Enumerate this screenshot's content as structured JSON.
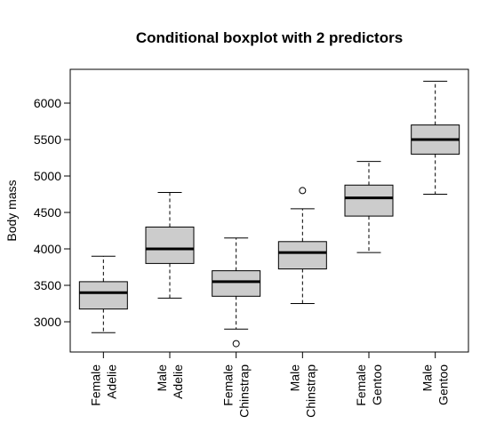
{
  "chart_data": {
    "type": "boxplot",
    "title": "Conditional boxplot with 2 predictors",
    "ylabel": "Body mass",
    "xlabel": "",
    "ylim": [
      2580,
      6420
    ],
    "yticks": [
      3000,
      3500,
      4000,
      4500,
      5000,
      5500,
      6000
    ],
    "categories": [
      [
        "Female",
        "Adelie"
      ],
      [
        "Male",
        "Adelie"
      ],
      [
        "Female",
        "Chinstrap"
      ],
      [
        "Male",
        "Chinstrap"
      ],
      [
        "Female",
        "Gentoo"
      ],
      [
        "Male",
        "Gentoo"
      ]
    ],
    "boxes": [
      {
        "whisker_low": 2850,
        "q1": 3175,
        "median": 3400,
        "q3": 3550,
        "whisker_high": 3900,
        "outliers": []
      },
      {
        "whisker_low": 3325,
        "q1": 3800,
        "median": 4000,
        "q3": 4300,
        "whisker_high": 4775,
        "outliers": []
      },
      {
        "whisker_low": 2900,
        "q1": 3350,
        "median": 3550,
        "q3": 3700,
        "whisker_high": 4150,
        "outliers": [
          2700
        ]
      },
      {
        "whisker_low": 3250,
        "q1": 3725,
        "median": 3950,
        "q3": 4100,
        "whisker_high": 4550,
        "outliers": [
          4800
        ]
      },
      {
        "whisker_low": 3950,
        "q1": 4450,
        "median": 4700,
        "q3": 4875,
        "whisker_high": 5200,
        "outliers": []
      },
      {
        "whisker_low": 4750,
        "q1": 5300,
        "median": 5500,
        "q3": 5700,
        "whisker_high": 6300,
        "outliers": []
      }
    ],
    "box_color": "#cccccc",
    "grid": false
  }
}
